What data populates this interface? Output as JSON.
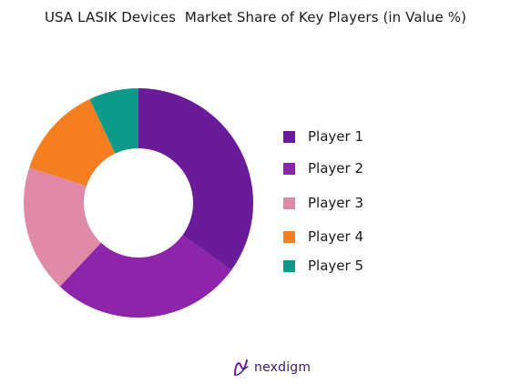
{
  "chart_data": {
    "type": "pie",
    "title": "USA LASIK Devices  Market Share of Key Players (in Value %)",
    "categories": [
      "Player 1",
      "Player 2",
      "Player 3",
      "Player 4",
      "Player 5"
    ],
    "values": [
      35,
      27,
      18,
      13,
      7
    ],
    "colors": [
      "#6a1b9a",
      "#8e24aa",
      "#e08aa8",
      "#f57f20",
      "#0e9a8a"
    ],
    "donut": true,
    "legend_position": "right"
  },
  "branding": {
    "logo_text": "nexdigm",
    "logo_color": "#3a1a6e"
  }
}
